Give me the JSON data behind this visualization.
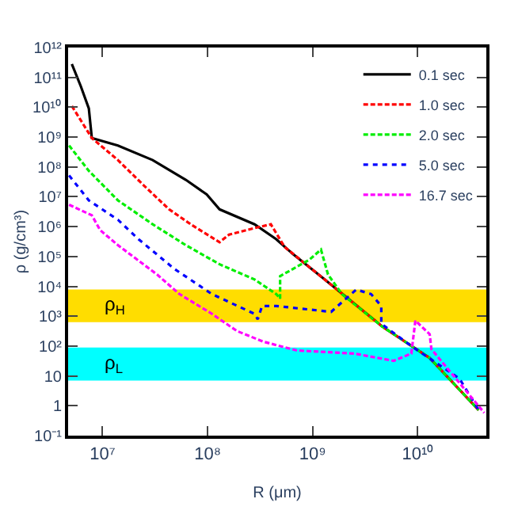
{
  "chart_data": {
    "type": "line",
    "xlabel": "R (μm)",
    "ylabel": "ρ (g/cm³)",
    "log": "xy",
    "grid": false,
    "legend": "top right",
    "marker": "none",
    "xlim": [
      4700000.0,
      45000000000.0
    ],
    "ylim": [
      0.1,
      1000000000000.0
    ],
    "xticks": [
      {
        "value": 10000000.0,
        "label": "10⁷"
      },
      {
        "value": 100000000.0,
        "label": "10⁸"
      },
      {
        "value": 1000000000.0,
        "label": "10⁹"
      },
      {
        "value": 10000000000.0,
        "label": "10¹⁰"
      }
    ],
    "yticks": [
      {
        "value": 0.1,
        "label": "10⁻¹"
      },
      1,
      10,
      {
        "value": 100,
        "label": "10²"
      },
      {
        "value": 1000,
        "label": "10³"
      },
      {
        "value": 10000.0,
        "label": "10⁴"
      },
      {
        "value": 100000.0,
        "label": "10⁵"
      },
      {
        "value": 1000000.0,
        "label": "10⁶"
      },
      {
        "value": 10000000.0,
        "label": "10⁷"
      },
      {
        "value": 100000000.0,
        "label": "10⁸"
      },
      {
        "value": 1000000000.0,
        "label": "10⁹"
      },
      {
        "value": 10000000000.0,
        "label": "10¹⁰"
      },
      {
        "value": 100000000000.0,
        "label": "10¹¹"
      },
      {
        "value": 1000000000000.0,
        "label": "10¹²"
      }
    ],
    "bands": [
      {
        "axis": "y",
        "from": 630,
        "to": 7900,
        "label": "ρ$_{H}$",
        "color": "#ffdd00"
      },
      {
        "axis": "y",
        "from": 7,
        "to": 90,
        "label": "ρ$_{L}$",
        "color": "#00ffff"
      }
    ],
    "series": [
      {
        "name": "0.1 sec",
        "color": "#000000",
        "line_style": "solid",
        "x": [
          5100000.0,
          6200000.0,
          7400000.0,
          7900000.0,
          14000000.0,
          30000000.0,
          62000000.0,
          98000000.0,
          130000000.0,
          280000000.0,
          450000000.0,
          650000000.0,
          1300000000.0,
          4600000000.0,
          13000000000.0,
          38000000000.0
        ],
        "values": [
          280000000000.0,
          51000000000.0,
          9100000000.0,
          930000000.0,
          520000000.0,
          170000000.0,
          37000000.0,
          12000000.0,
          3800000.0,
          1200000.0,
          380000.0,
          120000.0,
          17000.0,
          450,
          40,
          0.72
        ]
      },
      {
        "name": "1.0 sec",
        "color": "#ff0000",
        "line_style": "dashed",
        "x": [
          5100000.0,
          7900000.0,
          14000000.0,
          25000000.0,
          43000000.0,
          69000000.0,
          130000000.0,
          160000000.0,
          300000000.0,
          400000000.0,
          540000000.0,
          1300000000.0,
          4600000000.0,
          13000000000.0,
          38000000000.0
        ],
        "values": [
          11000000000.0,
          930000000.0,
          170000000.0,
          23000000.0,
          3800000.0,
          1200000.0,
          300000.0,
          540000.0,
          950000.0,
          1200000.0,
          210000.0,
          17000.0,
          450,
          40,
          0.72
        ]
      },
      {
        "name": "2.0 sec",
        "color": "#00ee00",
        "line_style": "dashed",
        "x": [
          4800000.0,
          7400000.0,
          14000000.0,
          30000000.0,
          62000000.0,
          130000000.0,
          280000000.0,
          450000000.0,
          490000000.0,
          490000000.0,
          930000000.0,
          1200000000.0,
          1400000000.0,
          1900000000.0,
          4600000000.0,
          13000000000.0,
          38000000000.0
        ],
        "values": [
          520000000.0,
          74000000.0,
          7600000.0,
          1200000.0,
          240000.0,
          55000.0,
          17000.0,
          5500.0,
          3900.0,
          22000.0,
          78000.0,
          170000.0,
          25000.0,
          5500.0,
          450,
          40,
          0.72
        ]
      },
      {
        "name": "5.0 sec",
        "color": "#0000ff",
        "line_style": "dotted",
        "x": [
          4800000.0,
          7400000.0,
          14000000.0,
          22000000.0,
          48000000.0,
          110000000.0,
          280000000.0,
          300000000.0,
          330000000.0,
          450000000.0,
          1500000000.0,
          2600000000.0,
          3600000000.0,
          4500000000.0,
          4500000000.0,
          8700000000.0,
          25000000000.0,
          38000000000.0
        ],
        "values": [
          52000000.0,
          7600000.0,
          1700000.0,
          380000.0,
          39000.0,
          5500.0,
          1200.0,
          790,
          2200.0,
          2200.0,
          1400.0,
          7800.0,
          5500.0,
          2200.0,
          560,
          100,
          8.1,
          0.72
        ]
      },
      {
        "name": "16.7 sec",
        "color": "#ff00ff",
        "line_style": "dashed",
        "x": [
          4800000.0,
          7900000.0,
          9500000.0,
          14000000.0,
          33000000.0,
          54000000.0,
          110000000.0,
          190000000.0,
          340000000.0,
          710000000.0,
          2500000000.0,
          5900000000.0,
          8700000000.0,
          9500000000.0,
          13000000000.0,
          13500000000.0,
          25000000000.0,
          43000000000.0
        ],
        "values": [
          5400000.0,
          2400000.0,
          760000.0,
          240000.0,
          25000.0,
          5500.0,
          1200.0,
          320,
          140,
          71,
          56,
          32,
          56,
          710,
          250,
          79,
          5.8,
          0.58
        ]
      }
    ]
  }
}
